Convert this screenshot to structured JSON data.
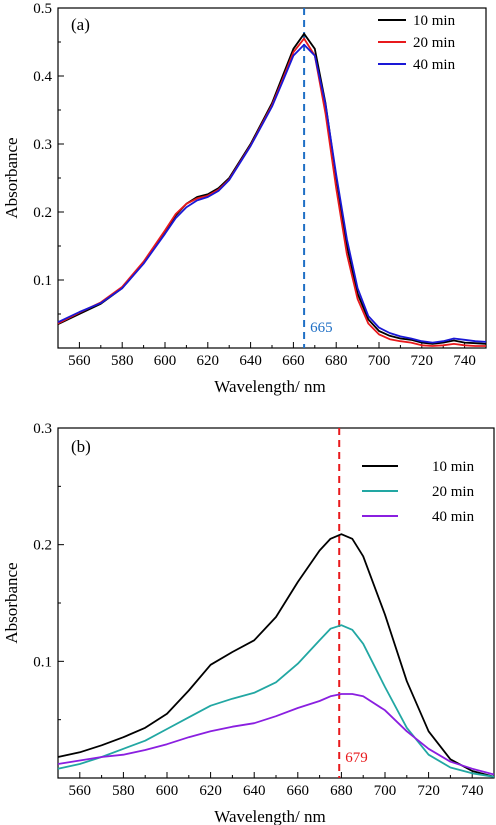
{
  "chart_data": [
    {
      "panel_label": "(a)",
      "type": "line",
      "xlabel": "Wavelength/ nm",
      "ylabel": "Absorbance",
      "xlim": [
        550,
        750
      ],
      "ylim": [
        0.0,
        0.5
      ],
      "x_ticks": [
        560,
        580,
        600,
        620,
        640,
        660,
        680,
        700,
        720,
        740
      ],
      "y_ticks": [
        0.1,
        0.2,
        0.3,
        0.4,
        0.5
      ],
      "legend_position": "top-right",
      "reference_line": {
        "x": 665,
        "label": "665",
        "color": "#1f6fc5",
        "style": "dashed"
      },
      "x": [
        550,
        560,
        570,
        580,
        590,
        600,
        605,
        610,
        615,
        620,
        625,
        630,
        640,
        650,
        655,
        660,
        665,
        670,
        675,
        680,
        685,
        690,
        695,
        700,
        705,
        710,
        715,
        720,
        725,
        730,
        735,
        740,
        745,
        750
      ],
      "series": [
        {
          "name": "10 min",
          "color": "#000000",
          "values": [
            0.035,
            0.05,
            0.065,
            0.088,
            0.125,
            0.172,
            0.195,
            0.212,
            0.222,
            0.226,
            0.235,
            0.25,
            0.3,
            0.36,
            0.4,
            0.44,
            0.462,
            0.44,
            0.36,
            0.25,
            0.15,
            0.08,
            0.042,
            0.025,
            0.018,
            0.014,
            0.012,
            0.008,
            0.006,
            0.008,
            0.011,
            0.008,
            0.007,
            0.006
          ]
        },
        {
          "name": "20 min",
          "color": "#e8191c",
          "values": [
            0.036,
            0.052,
            0.067,
            0.09,
            0.127,
            0.173,
            0.197,
            0.212,
            0.22,
            0.224,
            0.233,
            0.248,
            0.298,
            0.357,
            0.395,
            0.435,
            0.455,
            0.43,
            0.345,
            0.235,
            0.138,
            0.072,
            0.036,
            0.02,
            0.013,
            0.01,
            0.008,
            0.004,
            0.003,
            0.004,
            0.006,
            0.004,
            0.003,
            0.003
          ]
        },
        {
          "name": "40 min",
          "color": "#1a18d6",
          "values": [
            0.038,
            0.053,
            0.066,
            0.088,
            0.124,
            0.168,
            0.191,
            0.207,
            0.217,
            0.222,
            0.231,
            0.247,
            0.297,
            0.355,
            0.392,
            0.43,
            0.446,
            0.43,
            0.358,
            0.255,
            0.16,
            0.088,
            0.047,
            0.03,
            0.022,
            0.017,
            0.014,
            0.01,
            0.008,
            0.01,
            0.014,
            0.012,
            0.01,
            0.009
          ]
        }
      ]
    },
    {
      "panel_label": "(b)",
      "type": "line",
      "xlabel": "Wavelength/ nm",
      "ylabel": "Absorbance",
      "xlim": [
        550,
        750
      ],
      "ylim": [
        0.0,
        0.3
      ],
      "x_ticks": [
        560,
        580,
        600,
        620,
        640,
        660,
        680,
        700,
        720,
        740
      ],
      "y_ticks": [
        0.1,
        0.2,
        0.3
      ],
      "legend_position": "top-right",
      "reference_line": {
        "x": 679,
        "label": "679",
        "color": "#e8191c",
        "style": "dashed"
      },
      "x": [
        550,
        560,
        570,
        580,
        590,
        600,
        610,
        620,
        630,
        640,
        650,
        660,
        670,
        675,
        680,
        685,
        690,
        700,
        710,
        720,
        730,
        740,
        750
      ],
      "series": [
        {
          "name": "10 min",
          "color": "#000000",
          "values": [
            0.018,
            0.022,
            0.028,
            0.035,
            0.043,
            0.055,
            0.075,
            0.097,
            0.108,
            0.118,
            0.138,
            0.168,
            0.195,
            0.205,
            0.209,
            0.205,
            0.19,
            0.14,
            0.083,
            0.04,
            0.016,
            0.006,
            0.001
          ]
        },
        {
          "name": "20 min",
          "color": "#22a7a3",
          "values": [
            0.008,
            0.012,
            0.018,
            0.025,
            0.032,
            0.042,
            0.052,
            0.062,
            0.068,
            0.073,
            0.082,
            0.098,
            0.118,
            0.128,
            0.131,
            0.127,
            0.115,
            0.078,
            0.043,
            0.02,
            0.009,
            0.004,
            0.001
          ]
        },
        {
          "name": "40 min",
          "color": "#8a1fe0",
          "values": [
            0.012,
            0.015,
            0.018,
            0.02,
            0.024,
            0.029,
            0.035,
            0.04,
            0.044,
            0.047,
            0.053,
            0.06,
            0.066,
            0.07,
            0.072,
            0.072,
            0.07,
            0.058,
            0.04,
            0.025,
            0.014,
            0.008,
            0.003
          ]
        }
      ]
    }
  ]
}
